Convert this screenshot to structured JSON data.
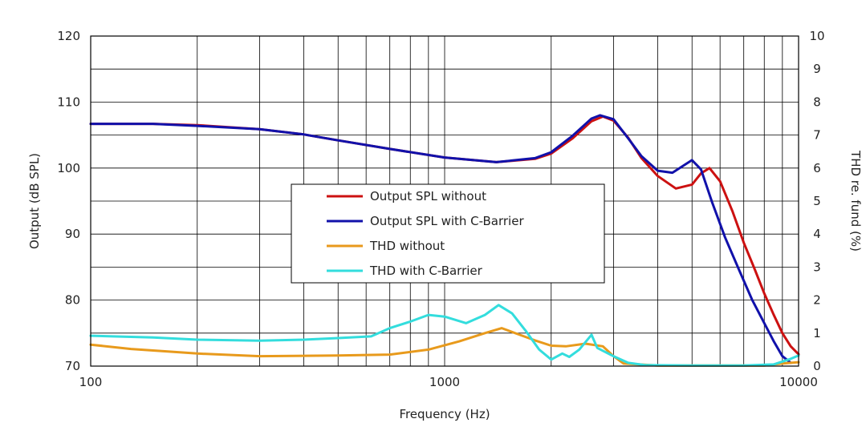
{
  "chart_data": {
    "type": "line",
    "title": "",
    "xlabel": "Frequency (Hz)",
    "ylabel": "Output (dB SPL)",
    "y2label": "THD re. fund (%)",
    "xscale": "log",
    "xlim": [
      100,
      10000
    ],
    "ylim": [
      70,
      120
    ],
    "y2lim": [
      0,
      10
    ],
    "grid": true,
    "legend_position": "center",
    "x_ticks": [
      "100",
      "1000",
      "10000"
    ],
    "y_ticks": [
      "70",
      "80",
      "90",
      "100",
      "110",
      "120"
    ],
    "y2_ticks": [
      "0",
      "1",
      "2",
      "3",
      "4",
      "5",
      "6",
      "7",
      "8",
      "9",
      "10"
    ],
    "series": [
      {
        "name": "Output SPL without",
        "axis": "left",
        "color": "#cc1111",
        "points": [
          [
            100,
            106.7
          ],
          [
            150,
            106.7
          ],
          [
            200,
            106.5
          ],
          [
            300,
            105.9
          ],
          [
            400,
            105.1
          ],
          [
            500,
            104.2
          ],
          [
            700,
            102.9
          ],
          [
            1000,
            101.6
          ],
          [
            1400,
            100.9
          ],
          [
            1800,
            101.4
          ],
          [
            2000,
            102.2
          ],
          [
            2300,
            104.5
          ],
          [
            2600,
            107.1
          ],
          [
            2800,
            107.8
          ],
          [
            3000,
            107.2
          ],
          [
            3300,
            104.6
          ],
          [
            3600,
            101.5
          ],
          [
            4000,
            98.8
          ],
          [
            4500,
            96.9
          ],
          [
            5000,
            97.5
          ],
          [
            5300,
            99.2
          ],
          [
            5600,
            100.0
          ],
          [
            6000,
            98.0
          ],
          [
            6500,
            93.5
          ],
          [
            7000,
            88.7
          ],
          [
            7500,
            84.8
          ],
          [
            8000,
            81.0
          ],
          [
            8500,
            77.8
          ],
          [
            9000,
            75.0
          ],
          [
            9500,
            73.0
          ],
          [
            10000,
            71.8
          ]
        ]
      },
      {
        "name": "Output SPL with C-Barrier",
        "axis": "left",
        "color": "#1111aa",
        "points": [
          [
            100,
            106.7
          ],
          [
            150,
            106.7
          ],
          [
            200,
            106.4
          ],
          [
            300,
            105.9
          ],
          [
            400,
            105.1
          ],
          [
            500,
            104.2
          ],
          [
            700,
            102.9
          ],
          [
            1000,
            101.6
          ],
          [
            1400,
            100.9
          ],
          [
            1800,
            101.5
          ],
          [
            2000,
            102.4
          ],
          [
            2300,
            104.9
          ],
          [
            2600,
            107.5
          ],
          [
            2750,
            108.0
          ],
          [
            3000,
            107.4
          ],
          [
            3300,
            104.5
          ],
          [
            3600,
            101.8
          ],
          [
            4000,
            99.6
          ],
          [
            4400,
            99.3
          ],
          [
            4800,
            100.6
          ],
          [
            5000,
            101.2
          ],
          [
            5300,
            99.8
          ],
          [
            5700,
            94.8
          ],
          [
            6200,
            89.5
          ],
          [
            6800,
            84.5
          ],
          [
            7400,
            80.0
          ],
          [
            8000,
            76.5
          ],
          [
            8500,
            73.8
          ],
          [
            9000,
            71.5
          ],
          [
            9500,
            70.5
          ]
        ]
      },
      {
        "name": "THD without",
        "axis": "right",
        "color": "#e89a1c",
        "points": [
          [
            100,
            0.65
          ],
          [
            130,
            0.52
          ],
          [
            200,
            0.38
          ],
          [
            300,
            0.3
          ],
          [
            500,
            0.32
          ],
          [
            700,
            0.35
          ],
          [
            900,
            0.5
          ],
          [
            1100,
            0.75
          ],
          [
            1300,
            1.0
          ],
          [
            1450,
            1.15
          ],
          [
            1600,
            0.98
          ],
          [
            1800,
            0.78
          ],
          [
            2000,
            0.62
          ],
          [
            2200,
            0.6
          ],
          [
            2500,
            0.68
          ],
          [
            2800,
            0.6
          ],
          [
            3000,
            0.3
          ],
          [
            3200,
            0.08
          ],
          [
            4000,
            0.02
          ],
          [
            6000,
            0.02
          ],
          [
            8000,
            0.02
          ],
          [
            9000,
            0.08
          ],
          [
            10000,
            0.12
          ]
        ]
      },
      {
        "name": "THD with C-Barrier",
        "axis": "right",
        "color": "#33dddd",
        "points": [
          [
            100,
            0.92
          ],
          [
            150,
            0.87
          ],
          [
            200,
            0.8
          ],
          [
            300,
            0.77
          ],
          [
            400,
            0.8
          ],
          [
            500,
            0.85
          ],
          [
            620,
            0.9
          ],
          [
            700,
            1.15
          ],
          [
            800,
            1.35
          ],
          [
            900,
            1.55
          ],
          [
            1000,
            1.5
          ],
          [
            1150,
            1.3
          ],
          [
            1300,
            1.55
          ],
          [
            1420,
            1.85
          ],
          [
            1550,
            1.6
          ],
          [
            1700,
            1.05
          ],
          [
            1850,
            0.5
          ],
          [
            2000,
            0.2
          ],
          [
            2150,
            0.38
          ],
          [
            2250,
            0.28
          ],
          [
            2400,
            0.5
          ],
          [
            2600,
            0.95
          ],
          [
            2700,
            0.55
          ],
          [
            3000,
            0.3
          ],
          [
            3300,
            0.1
          ],
          [
            3700,
            0.03
          ],
          [
            5000,
            0.02
          ],
          [
            7000,
            0.02
          ],
          [
            8500,
            0.05
          ],
          [
            9500,
            0.22
          ],
          [
            10000,
            0.32
          ]
        ]
      }
    ]
  }
}
